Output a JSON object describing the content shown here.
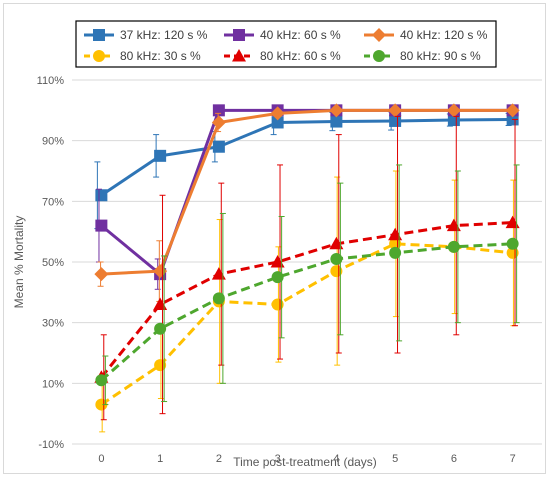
{
  "chart_data": {
    "type": "line",
    "title": "",
    "xlabel": "Time post-treatment (days)",
    "ylabel": "Mean % Mortality",
    "x": [
      0,
      1,
      2,
      3,
      4,
      5,
      6,
      7
    ],
    "ylim": [
      -10,
      110
    ],
    "yticks": [
      -10,
      10,
      30,
      50,
      70,
      90,
      110
    ],
    "ytick_labels": [
      "-10%",
      "10%",
      "30%",
      "50%",
      "70%",
      "90%",
      "110%"
    ],
    "grid": "horizontal",
    "legend_position": "top",
    "series": [
      {
        "name": "37 kHz: 120 s %",
        "color": "#2e75b6",
        "dash": "solid",
        "marker": "square",
        "values": [
          72,
          85,
          88,
          96,
          96.3,
          96.5,
          96.8,
          97
        ],
        "errors": [
          11,
          7,
          5,
          4,
          3,
          3,
          2,
          2
        ]
      },
      {
        "name": "40 kHz: 60 s %",
        "color": "#7030a0",
        "dash": "solid",
        "marker": "square",
        "values": [
          62,
          46,
          100,
          100,
          100,
          100,
          100,
          100
        ],
        "errors": [
          12,
          5,
          0,
          0,
          0,
          0,
          0,
          0
        ]
      },
      {
        "name": "40 kHz: 120 s %",
        "color": "#ed7d31",
        "dash": "solid",
        "marker": "diamond",
        "values": [
          46,
          47,
          96,
          99,
          100,
          100,
          100,
          100
        ],
        "errors": [
          4,
          10,
          3,
          1,
          0,
          0,
          0,
          0
        ]
      },
      {
        "name": "80 kHz: 30 s %",
        "color": "#ffc000",
        "dash": "dash",
        "marker": "circle",
        "values": [
          3,
          16,
          37,
          36,
          47,
          56,
          55,
          53
        ],
        "errors": [
          9,
          11,
          27,
          19,
          31,
          24,
          22,
          24
        ]
      },
      {
        "name": "80 kHz: 60 s %",
        "color": "#e00000",
        "dash": "dash",
        "marker": "triangle",
        "values": [
          12,
          36,
          46,
          50,
          56,
          59,
          62,
          63
        ],
        "errors": [
          14,
          36,
          30,
          32,
          36,
          39,
          36,
          34
        ]
      },
      {
        "name": "80 kHz: 90 s %",
        "color": "#4ea72e",
        "dash": "dash",
        "marker": "circle",
        "values": [
          11,
          28,
          38,
          45,
          51,
          53,
          55,
          56
        ],
        "errors": [
          8,
          24,
          28,
          20,
          25,
          29,
          25,
          26
        ]
      }
    ]
  }
}
